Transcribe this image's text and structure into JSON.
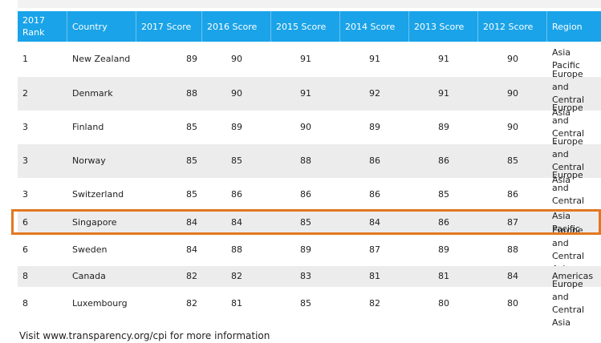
{
  "headers": [
    "2017 Rank",
    "Country",
    "2017 Score",
    "2016 Score",
    "2015 Score",
    "2014 Score",
    "2013 Score",
    "2012 Score",
    "Region"
  ],
  "rows": [
    {
      "rank": "1",
      "country": "New Zealand",
      "s2017": "89",
      "s2016": "90",
      "s2015": "91",
      "s2014": "91",
      "s2013": "91",
      "s2012": "90",
      "region": "Asia Pacific"
    },
    {
      "rank": "2",
      "country": "Denmark",
      "s2017": "88",
      "s2016": "90",
      "s2015": "91",
      "s2014": "92",
      "s2013": "91",
      "s2012": "90",
      "region": "Europe and Central Asia"
    },
    {
      "rank": "3",
      "country": "Finland",
      "s2017": "85",
      "s2016": "89",
      "s2015": "90",
      "s2014": "89",
      "s2013": "89",
      "s2012": "90",
      "region": "Europe and Central Asia"
    },
    {
      "rank": "3",
      "country": "Norway",
      "s2017": "85",
      "s2016": "85",
      "s2015": "88",
      "s2014": "86",
      "s2013": "86",
      "s2012": "85",
      "region": "Europe and Central Asia"
    },
    {
      "rank": "3",
      "country": "Switzerland",
      "s2017": "85",
      "s2016": "86",
      "s2015": "86",
      "s2014": "86",
      "s2013": "85",
      "s2012": "86",
      "region": "Europe and Central Asia"
    },
    {
      "rank": "6",
      "country": "Singapore",
      "s2017": "84",
      "s2016": "84",
      "s2015": "85",
      "s2014": "84",
      "s2013": "86",
      "s2012": "87",
      "region": "Asia Pacific"
    },
    {
      "rank": "6",
      "country": "Sweden",
      "s2017": "84",
      "s2016": "88",
      "s2015": "89",
      "s2014": "87",
      "s2013": "89",
      "s2012": "88",
      "region": "Europe and Central Asia"
    },
    {
      "rank": "8",
      "country": "Canada",
      "s2017": "82",
      "s2016": "82",
      "s2015": "83",
      "s2014": "81",
      "s2013": "81",
      "s2012": "84",
      "region": "Americas"
    },
    {
      "rank": "8",
      "country": "Luxembourg",
      "s2017": "82",
      "s2016": "81",
      "s2015": "85",
      "s2014": "82",
      "s2013": "80",
      "s2012": "80",
      "region": "Europe and Central Asia"
    }
  ],
  "footer": "Visit www.transparency.org/cpi for more information",
  "colors": {
    "header": "#1aa3e8",
    "highlight": "#e2781f",
    "stripe": "#ececec"
  }
}
